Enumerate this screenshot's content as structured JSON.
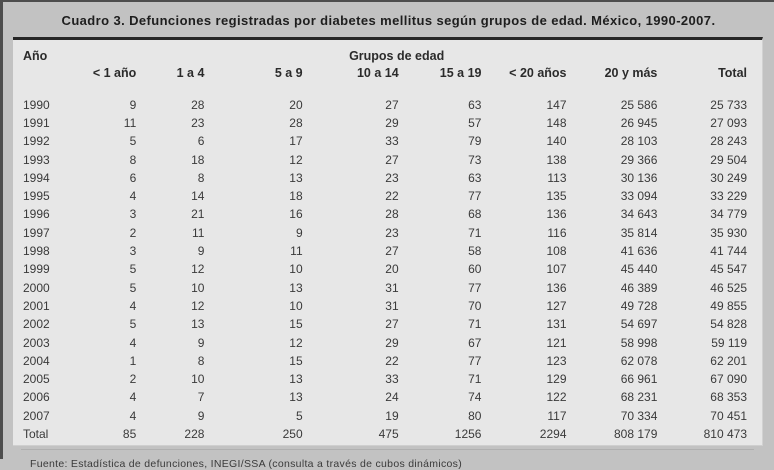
{
  "title": "Cuadro 3. Defunciones registradas por diabetes mellitus según grupos de edad. México, 1990-2007.",
  "table": {
    "year_col_label": "Año",
    "group_header": "Grupos de edad",
    "age_col_labels": [
      "< 1 año",
      "1 a 4",
      "5 a 9",
      "10 a 14",
      "15 a 19",
      "< 20 años",
      "20 y más",
      "Total"
    ],
    "rows": [
      [
        "1990",
        "9",
        "28",
        "20",
        "27",
        "63",
        "147",
        "25 586",
        "25 733"
      ],
      [
        "1991",
        "11",
        "23",
        "28",
        "29",
        "57",
        "148",
        "26 945",
        "27 093"
      ],
      [
        "1992",
        "5",
        "6",
        "17",
        "33",
        "79",
        "140",
        "28 103",
        "28 243"
      ],
      [
        "1993",
        "8",
        "18",
        "12",
        "27",
        "73",
        "138",
        "29 366",
        "29 504"
      ],
      [
        "1994",
        "6",
        "8",
        "13",
        "23",
        "63",
        "113",
        "30 136",
        "30 249"
      ],
      [
        "1995",
        "4",
        "14",
        "18",
        "22",
        "77",
        "135",
        "33 094",
        "33 229"
      ],
      [
        "1996",
        "3",
        "21",
        "16",
        "28",
        "68",
        "136",
        "34 643",
        "34 779"
      ],
      [
        "1997",
        "2",
        "11",
        "9",
        "23",
        "71",
        "116",
        "35 814",
        "35 930"
      ],
      [
        "1998",
        "3",
        "9",
        "11",
        "27",
        "58",
        "108",
        "41 636",
        "41 744"
      ],
      [
        "1999",
        "5",
        "12",
        "10",
        "20",
        "60",
        "107",
        "45 440",
        "45 547"
      ],
      [
        "2000",
        "5",
        "10",
        "13",
        "31",
        "77",
        "136",
        "46 389",
        "46 525"
      ],
      [
        "2001",
        "4",
        "12",
        "10",
        "31",
        "70",
        "127",
        "49 728",
        "49 855"
      ],
      [
        "2002",
        "5",
        "13",
        "15",
        "27",
        "71",
        "131",
        "54 697",
        "54 828"
      ],
      [
        "2003",
        "4",
        "9",
        "12",
        "29",
        "67",
        "121",
        "58 998",
        "59 119"
      ],
      [
        "2004",
        "1",
        "8",
        "15",
        "22",
        "77",
        "123",
        "62 078",
        "62 201"
      ],
      [
        "2005",
        "2",
        "10",
        "13",
        "33",
        "71",
        "129",
        "66 961",
        "67 090"
      ],
      [
        "2006",
        "4",
        "7",
        "13",
        "24",
        "74",
        "122",
        "68 231",
        "68 353"
      ],
      [
        "2007",
        "4",
        "9",
        "5",
        "19",
        "80",
        "117",
        "70 334",
        "70 451"
      ],
      [
        "Total",
        "85",
        "228",
        "250",
        "475",
        "1256",
        "2294",
        "808 179",
        "810 473"
      ]
    ]
  },
  "footer": {
    "source": "Fuente: Estadística de defunciones, INEGI/SSA (consulta a través de cubos dinámicos)"
  },
  "colors": {
    "page_background": "#c2c2c2",
    "panel_background": "#e7e7e7",
    "text": "#3a3a3a",
    "rule_dark": "#262626"
  }
}
